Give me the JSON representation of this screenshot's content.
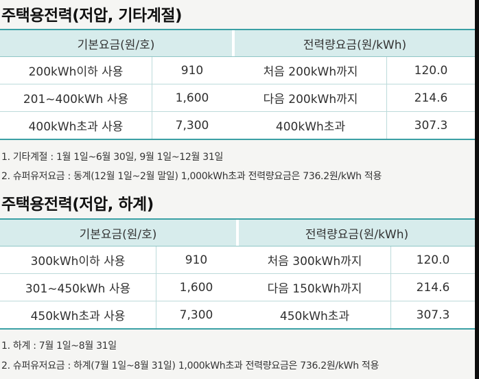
{
  "section1": {
    "title": "주택용전력(저압, 기타계절)",
    "header_basic": "기본요금(원/호)",
    "header_energy": "전력량요금(원/kWh)",
    "rows": [
      {
        "basic_label": "200kWh이하 사용",
        "basic_value": "910",
        "energy_label": "처음 200kWh까지",
        "energy_value": "120.0"
      },
      {
        "basic_label": "201~400kWh 사용",
        "basic_value": "1,600",
        "energy_label": "다음 200kWh까지",
        "energy_value": "214.6"
      },
      {
        "basic_label": "400kWh초과 사용",
        "basic_value": "7,300",
        "energy_label": "400kWh초과",
        "energy_value": "307.3"
      }
    ],
    "notes": [
      "1. 기타계절 : 1월 1일~6월 30일, 9월 1일~12월 31일",
      "2. 슈퍼유저요금 : 동계(12월 1일~2월 말일) 1,000kWh초과 전력량요금은 736.2원/kWh 적용"
    ]
  },
  "section2": {
    "title": "주택용전력(저압, 하계)",
    "header_basic": "기본요금(원/호)",
    "header_energy": "전력량요금(원/kWh)",
    "rows": [
      {
        "basic_label": "300kWh이하 사용",
        "basic_value": "910",
        "energy_label": "처음 300kWh까지",
        "energy_value": "120.0"
      },
      {
        "basic_label": "301~450kWh 사용",
        "basic_value": "1,600",
        "energy_label": "다음 150kWh까지",
        "energy_value": "214.6"
      },
      {
        "basic_label": "450kWh초과 사용",
        "basic_value": "7,300",
        "energy_label": "450kWh초과",
        "energy_value": "307.3"
      }
    ],
    "notes": [
      "1. 하계 : 7월 1일~8월 31일",
      "2. 슈퍼유저요금 : 하계(7월 1일~8월 31일) 1,000kWh초과 전력량요금은 736.2원/kWh 적용"
    ]
  }
}
